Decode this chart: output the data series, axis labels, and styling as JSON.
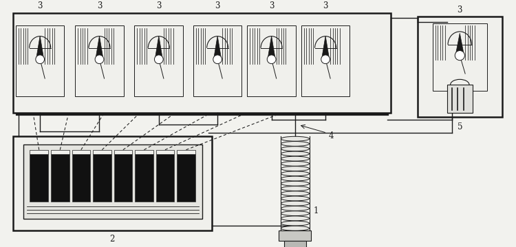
{
  "bg_color": "#f2f2ee",
  "line_color": "#1a1a1a",
  "fig_w": 7.5,
  "fig_h": 3.59,
  "dpi": 100
}
